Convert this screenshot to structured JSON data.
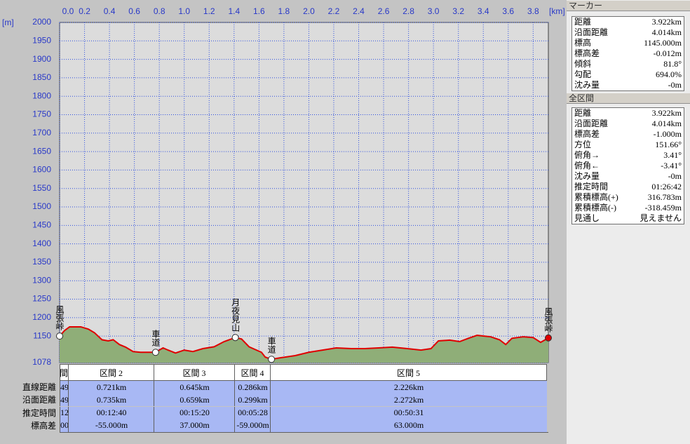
{
  "chart_data": {
    "type": "line",
    "y_unit": "[m]",
    "x_unit": "[km]",
    "x": [
      0,
      0.04,
      0.08,
      0.17,
      0.23,
      0.28,
      0.34,
      0.39,
      0.43,
      0.48,
      0.53,
      0.59,
      0.65,
      0.72,
      0.77,
      0.83,
      0.87,
      0.93,
      1.0,
      1.07,
      1.15,
      1.24,
      1.32,
      1.41,
      1.46,
      1.52,
      1.58,
      1.62,
      1.65,
      1.7,
      1.77,
      1.89,
      2.0,
      2.11,
      2.22,
      2.34,
      2.45,
      2.56,
      2.67,
      2.79,
      2.9,
      2.98,
      3.04,
      3.13,
      3.21,
      3.28,
      3.35,
      3.46,
      3.53,
      3.58,
      3.63,
      3.72,
      3.8,
      3.86,
      3.922
    ],
    "series": [
      {
        "color": "#e00000",
        "values": [
          1150,
          1165,
          1175,
          1175,
          1169,
          1159,
          1140,
          1137,
          1140,
          1127,
          1120,
          1108,
          1106,
          1106,
          1106,
          1118,
          1112,
          1104,
          1112,
          1108,
          1116,
          1121,
          1135,
          1146,
          1142,
          1121,
          1112,
          1106,
          1093,
          1087,
          1091,
          1097,
          1106,
          1112,
          1118,
          1116,
          1116,
          1118,
          1120,
          1116,
          1112,
          1116,
          1137,
          1139,
          1135,
          1144,
          1152,
          1148,
          1140,
          1127,
          1144,
          1148,
          1146,
          1133,
          1145
        ]
      }
    ],
    "fill_color": "#8fae78",
    "xlim": [
      0,
      3.922
    ],
    "ylim": [
      1078,
      2000
    ],
    "xticks": [
      {
        "value": 0,
        "label": "0.0"
      },
      0.2,
      0.4,
      0.6,
      0.8,
      {
        "value": 1,
        "label": "1.0"
      },
      1.2,
      1.4,
      1.6,
      1.8,
      {
        "value": 2,
        "label": "2.0"
      },
      2.2,
      2.4,
      2.6,
      2.8,
      {
        "value": 3,
        "label": "3.0"
      },
      3.2,
      3.4,
      3.6,
      3.8
    ],
    "yticks": [
      1078,
      1150,
      1200,
      1250,
      1300,
      1350,
      1400,
      1450,
      1500,
      1550,
      1600,
      1650,
      1700,
      1750,
      1800,
      1850,
      1900,
      1950,
      2000
    ],
    "grid": true,
    "waypoints": [
      {
        "label": "風張峠",
        "x": 0,
        "elevation": 1150
      },
      {
        "label": "車道",
        "x": 0.77,
        "elevation": 1106
      },
      {
        "label": "月夜見山",
        "x": 1.41,
        "elevation": 1146
      },
      {
        "label": "車道",
        "x": 1.7,
        "elevation": 1087
      },
      {
        "label": "風張峠",
        "x": 3.922,
        "elevation": 1145
      }
    ]
  },
  "sections": {
    "row_labels": [
      "直線距離",
      "沿面距離",
      "推定時間",
      "標高差"
    ],
    "columns": [
      {
        "header": "間",
        "values": [
          "49",
          "49",
          "12",
          "00"
        ]
      },
      {
        "header": "区間 2",
        "values": [
          "0.721km",
          "0.735km",
          "00:12:40",
          "-55.000m"
        ]
      },
      {
        "header": "区間 3",
        "values": [
          "0.645km",
          "0.659km",
          "00:15:20",
          "37.000m"
        ]
      },
      {
        "header": "区間 4",
        "values": [
          "0.286km",
          "0.299km",
          "00:05:28",
          "-59.000m"
        ]
      },
      {
        "header": "区間 5",
        "values": [
          "2.226km",
          "2.272km",
          "00:50:31",
          "63.000m"
        ]
      }
    ]
  },
  "marker": {
    "title": "マーカー",
    "rows": [
      [
        "距離",
        "3.922km"
      ],
      [
        "沿面距離",
        "4.014km"
      ],
      [
        "標高",
        "1145.000m"
      ],
      [
        "標高差",
        "-0.012m"
      ],
      [
        "傾斜",
        "81.8°"
      ],
      [
        "勾配",
        "694.0%"
      ],
      [
        "沈み量",
        "-0m"
      ]
    ]
  },
  "total": {
    "title": "全区間",
    "rows": [
      [
        "距離",
        "3.922km"
      ],
      [
        "沿面距離",
        "4.014km"
      ],
      [
        "標高差",
        "-1.000m"
      ],
      [
        "方位",
        "151.66°"
      ],
      [
        "俯角→",
        "3.41°"
      ],
      [
        "俯角←",
        "-3.41°"
      ],
      [
        "沈み量",
        "-0m"
      ],
      [
        "推定時間",
        "01:26:42"
      ],
      [
        "累積標高(+)",
        "316.783m"
      ],
      [
        "累積標高(-)",
        "-318.459m"
      ],
      [
        "見通し",
        "見えません"
      ]
    ]
  }
}
